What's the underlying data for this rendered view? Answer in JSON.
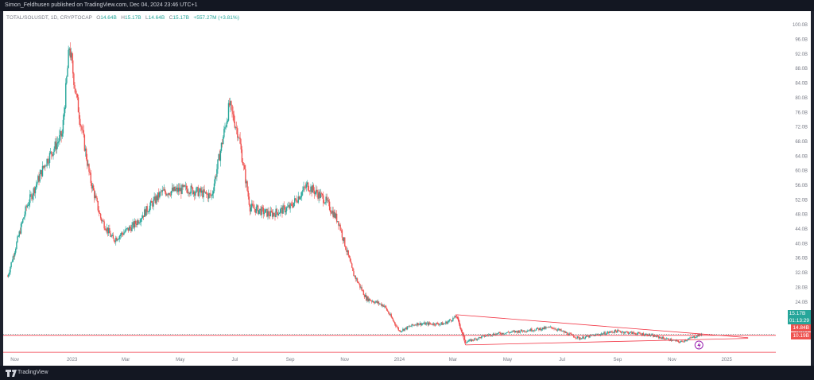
{
  "header": {
    "publish_text": "Simon_Feldhusen published on TradingView.com, Dec 04, 2024 23:46 UTC+1"
  },
  "legend": {
    "symbol": "TOTAL/SOLUSDT, 1D, CRYPTOCAP",
    "open_label": "O",
    "open": "14.64B",
    "high_label": "H",
    "high": "15.17B",
    "low_label": "L",
    "low": "14.64B",
    "close_label": "C",
    "close": "15.17B",
    "change": "+557.27M (+3.81%)"
  },
  "price_labels": {
    "current_price": "15.17B",
    "countdown": "01:13:29",
    "level_1": "14.84B",
    "level_2": "10.19B"
  },
  "footer": {
    "brand": "TradingView"
  },
  "colors": {
    "up": "#26a69a",
    "down": "#ef5350",
    "trendline": "#f23645",
    "price_line": "#26a69a"
  },
  "chart_data": {
    "type": "candlestick",
    "title": "",
    "y_axis_labels": [
      "100.0B",
      "96.0B",
      "92.0B",
      "88.0B",
      "84.0B",
      "80.0B",
      "76.0B",
      "72.0B",
      "68.0B",
      "64.0B",
      "60.0B",
      "56.0B",
      "52.0B",
      "48.0B",
      "44.0B",
      "40.0B",
      "36.0B",
      "32.0B",
      "28.0B",
      "24.0B",
      "20.0B",
      "16.0B"
    ],
    "ylim": [
      10,
      102
    ],
    "x_axis_labels": [
      "Nov",
      "2023",
      "Mar",
      "May",
      "Jul",
      "Sep",
      "Nov",
      "2024",
      "Mar",
      "May",
      "Jul",
      "Sep",
      "Nov",
      "2025"
    ],
    "series": [
      {
        "approx_close_path": [
          {
            "date": "2022-10-20",
            "value": 31
          },
          {
            "date": "2022-11-10",
            "value": 50
          },
          {
            "date": "2022-12-01",
            "value": 62
          },
          {
            "date": "2022-12-20",
            "value": 70
          },
          {
            "date": "2022-12-28",
            "value": 94
          },
          {
            "date": "2023-01-05",
            "value": 80
          },
          {
            "date": "2023-01-20",
            "value": 58
          },
          {
            "date": "2023-02-01",
            "value": 47
          },
          {
            "date": "2023-02-15",
            "value": 41
          },
          {
            "date": "2023-03-10",
            "value": 45
          },
          {
            "date": "2023-04-10",
            "value": 54
          },
          {
            "date": "2023-05-10",
            "value": 55
          },
          {
            "date": "2023-06-05",
            "value": 53
          },
          {
            "date": "2023-06-25",
            "value": 78
          },
          {
            "date": "2023-07-05",
            "value": 70
          },
          {
            "date": "2023-07-18",
            "value": 50
          },
          {
            "date": "2023-08-10",
            "value": 48
          },
          {
            "date": "2023-09-01",
            "value": 50
          },
          {
            "date": "2023-09-20",
            "value": 56
          },
          {
            "date": "2023-10-10",
            "value": 52
          },
          {
            "date": "2023-10-25",
            "value": 46
          },
          {
            "date": "2023-11-10",
            "value": 32
          },
          {
            "date": "2023-11-25",
            "value": 25
          },
          {
            "date": "2023-12-15",
            "value": 23
          },
          {
            "date": "2024-01-01",
            "value": 16
          },
          {
            "date": "2024-01-20",
            "value": 18
          },
          {
            "date": "2024-02-20",
            "value": 18
          },
          {
            "date": "2024-03-05",
            "value": 20
          },
          {
            "date": "2024-03-15",
            "value": 13
          },
          {
            "date": "2024-04-10",
            "value": 15
          },
          {
            "date": "2024-05-15",
            "value": 16
          },
          {
            "date": "2024-06-20",
            "value": 17
          },
          {
            "date": "2024-07-20",
            "value": 14
          },
          {
            "date": "2024-08-30",
            "value": 16
          },
          {
            "date": "2024-10-05",
            "value": 15
          },
          {
            "date": "2024-11-10",
            "value": 13
          },
          {
            "date": "2024-12-04",
            "value": 15.17
          }
        ]
      }
    ],
    "horizontal_levels": [
      14.84,
      10.19
    ]
  }
}
